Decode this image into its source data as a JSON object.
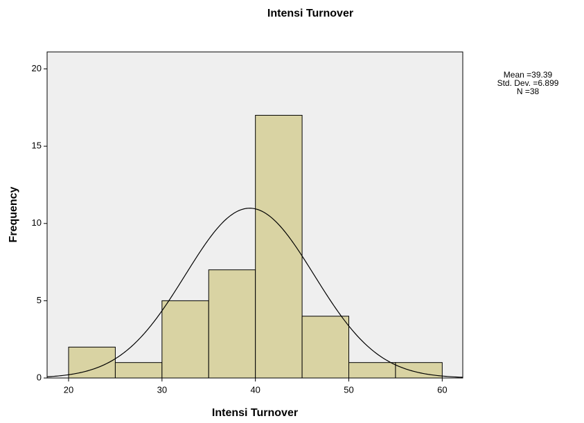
{
  "chart_data": {
    "type": "histogram",
    "title": "Intensi Turnover",
    "x_label": "Intensi Turnover",
    "y_label": "Frequency",
    "bins": [
      20,
      25,
      30,
      35,
      40,
      45,
      50,
      55,
      60
    ],
    "values": [
      2,
      1,
      5,
      7,
      17,
      4,
      1,
      1
    ],
    "color": "#d9d3a3",
    "xlim": [
      17.7,
      62.2
    ],
    "ylim": [
      0,
      21.1
    ],
    "xticks": [
      20,
      30,
      40,
      50,
      60
    ],
    "yticks": [
      0,
      5,
      10,
      15,
      20
    ],
    "stats": [
      {
        "label": "Mean =39.39",
        "value": 39.39
      },
      {
        "label": "Std. Dev. =6.899",
        "value": 6.899
      },
      {
        "label": "N =38",
        "value": 38
      }
    ]
  }
}
